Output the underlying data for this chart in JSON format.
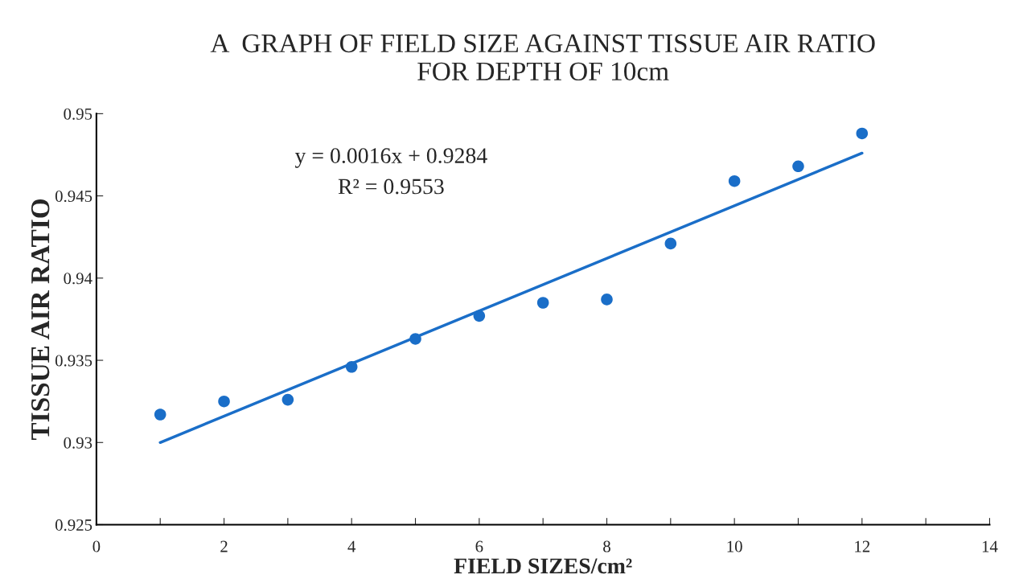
{
  "chart_data": {
    "type": "scatter",
    "title": "A  GRAPH OF FIELD SIZE AGAINST TISSUE AIR RATIO\nFOR DEPTH OF 10cm",
    "xlabel": "FIELD SIZES/cm²",
    "ylabel": "TISSUE AIR RATIO",
    "x": [
      1,
      2,
      3,
      4,
      5,
      6,
      7,
      8,
      9,
      10,
      11,
      12
    ],
    "series": [
      {
        "marker": "circle",
        "color": "#1a6ec8",
        "values": [
          0.9317,
          0.9325,
          0.9326,
          0.9346,
          0.9363,
          0.9377,
          0.9385,
          0.9387,
          0.9421,
          0.9459,
          0.9468,
          0.9488
        ]
      },
      {
        "type": "line",
        "marker": "none",
        "color": "#1a6ec8",
        "x": [
          1,
          12
        ],
        "values": [
          0.93,
          0.9476
        ]
      }
    ],
    "annotations": [
      "y = 0.0016x + 0.9284",
      "R² = 0.9553"
    ],
    "xlim": [
      0,
      14
    ],
    "ylim": [
      0.925,
      0.95
    ],
    "xticks": [
      0,
      {
        "value": 1,
        "label": null
      },
      2,
      {
        "value": 3,
        "label": null
      },
      4,
      {
        "value": 5,
        "label": null
      },
      6,
      {
        "value": 7,
        "label": null
      },
      8,
      {
        "value": 9,
        "label": null
      },
      10,
      {
        "value": 11,
        "label": null
      },
      12,
      {
        "value": 13,
        "label": null
      },
      14
    ],
    "yticks": [
      0.925,
      0.93,
      0.935,
      0.94,
      0.945,
      0.95
    ],
    "grid": false,
    "legend": false
  }
}
